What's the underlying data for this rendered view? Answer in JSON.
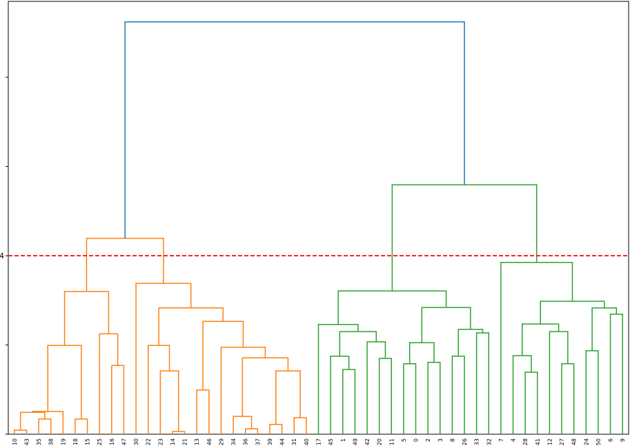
{
  "chart_data": {
    "type": "dendrogram",
    "ylim": [
      0,
      9.7
    ],
    "yticks": [
      {
        "value": 0,
        "label": null
      },
      {
        "value": 2,
        "label": null
      },
      4,
      {
        "value": 6,
        "label": null
      },
      {
        "value": 8,
        "label": null
      }
    ],
    "threshold": 4,
    "threshold_color": "#ff0000",
    "tree": {
      "height": 9.24,
      "color": "#1f77b4",
      "children": [
        {
          "height": 4.39,
          "color": "#ff7f0e",
          "children": [
            {
              "height": 3.2,
              "children": [
                {
                  "height": 1.99,
                  "children": [
                    {
                      "height": 0.51,
                      "children": [
                        {
                          "height": 0.49,
                          "children": [
                            {
                              "height": 0.09,
                              "children": [
                                {
                                  "label": "10"
                                },
                                {
                                  "label": "43"
                                }
                              ]
                            },
                            {
                              "height": 0.34,
                              "children": [
                                {
                                  "label": "35"
                                },
                                {
                                  "label": "38"
                                }
                              ]
                            }
                          ]
                        },
                        {
                          "label": "19"
                        }
                      ]
                    },
                    {
                      "height": 0.34,
                      "children": [
                        {
                          "label": "18"
                        },
                        {
                          "label": "15"
                        }
                      ]
                    }
                  ]
                },
                {
                  "height": 2.25,
                  "children": [
                    {
                      "label": "25"
                    },
                    {
                      "height": 1.54,
                      "children": [
                        {
                          "label": "16"
                        },
                        {
                          "label": "47"
                        }
                      ]
                    }
                  ]
                }
              ]
            },
            {
              "height": 3.38,
              "children": [
                {
                  "label": "30"
                },
                {
                  "height": 2.83,
                  "children": [
                    {
                      "height": 1.99,
                      "children": [
                        {
                          "label": "22"
                        },
                        {
                          "height": 1.42,
                          "children": [
                            {
                              "label": "23"
                            },
                            {
                              "height": 0.06,
                              "children": [
                                {
                                  "label": "14"
                                },
                                {
                                  "label": "21"
                                }
                              ]
                            }
                          ]
                        }
                      ]
                    },
                    {
                      "height": 2.53,
                      "children": [
                        {
                          "height": 0.99,
                          "children": [
                            {
                              "label": "13"
                            },
                            {
                              "label": "46"
                            }
                          ]
                        },
                        {
                          "height": 1.95,
                          "children": [
                            {
                              "label": "29"
                            },
                            {
                              "height": 1.71,
                              "children": [
                                {
                                  "height": 0.4,
                                  "children": [
                                    {
                                      "label": "34"
                                    },
                                    {
                                      "height": 0.12,
                                      "children": [
                                        {
                                          "label": "36"
                                        },
                                        {
                                          "label": "37"
                                        }
                                      ]
                                    }
                                  ]
                                },
                                {
                                  "height": 1.42,
                                  "children": [
                                    {
                                      "height": 0.22,
                                      "children": [
                                        {
                                          "label": "39"
                                        },
                                        {
                                          "label": "44"
                                        }
                                      ]
                                    },
                                    {
                                      "height": 0.37,
                                      "children": [
                                        {
                                          "label": "31"
                                        },
                                        {
                                          "label": "40"
                                        }
                                      ]
                                    }
                                  ]
                                }
                              ]
                            }
                          ]
                        }
                      ]
                    }
                  ]
                }
              ]
            }
          ]
        },
        {
          "height": 5.59,
          "color": "#2ca02c",
          "children": [
            {
              "height": 3.21,
              "children": [
                {
                  "height": 2.46,
                  "children": [
                    {
                      "label": "17"
                    },
                    {
                      "height": 2.3,
                      "children": [
                        {
                          "height": 1.75,
                          "children": [
                            {
                              "label": "45"
                            },
                            {
                              "height": 1.45,
                              "children": [
                                {
                                  "label": "1"
                                },
                                {
                                  "label": "49"
                                }
                              ]
                            }
                          ]
                        },
                        {
                          "height": 2.07,
                          "children": [
                            {
                              "label": "42"
                            },
                            {
                              "height": 1.7,
                              "children": [
                                {
                                  "label": "20"
                                },
                                {
                                  "label": "11"
                                }
                              ]
                            }
                          ]
                        }
                      ]
                    }
                  ]
                },
                {
                  "height": 2.84,
                  "children": [
                    {
                      "height": 2.05,
                      "children": [
                        {
                          "height": 1.58,
                          "children": [
                            {
                              "label": "5"
                            },
                            {
                              "label": "0"
                            }
                          ]
                        },
                        {
                          "height": 1.61,
                          "children": [
                            {
                              "label": "2"
                            },
                            {
                              "label": "3"
                            }
                          ]
                        }
                      ]
                    },
                    {
                      "height": 2.35,
                      "children": [
                        {
                          "height": 1.75,
                          "children": [
                            {
                              "label": "8"
                            },
                            {
                              "label": "26"
                            }
                          ]
                        },
                        {
                          "height": 2.27,
                          "children": [
                            {
                              "label": "33"
                            },
                            {
                              "label": "32"
                            }
                          ]
                        }
                      ]
                    }
                  ]
                }
              ]
            },
            {
              "height": 3.85,
              "children": [
                {
                  "label": "7"
                },
                {
                  "height": 2.98,
                  "children": [
                    {
                      "height": 2.47,
                      "children": [
                        {
                          "height": 1.76,
                          "children": [
                            {
                              "label": "4"
                            },
                            {
                              "height": 1.39,
                              "children": [
                                {
                                  "label": "28"
                                },
                                {
                                  "label": "41"
                                }
                              ]
                            }
                          ]
                        },
                        {
                          "height": 2.3,
                          "children": [
                            {
                              "label": "12"
                            },
                            {
                              "height": 1.58,
                              "children": [
                                {
                                  "label": "27"
                                },
                                {
                                  "label": "48"
                                }
                              ]
                            }
                          ]
                        }
                      ]
                    },
                    {
                      "height": 2.83,
                      "children": [
                        {
                          "height": 1.87,
                          "children": [
                            {
                              "label": "24"
                            },
                            {
                              "label": "50"
                            }
                          ]
                        },
                        {
                          "height": 2.69,
                          "children": [
                            {
                              "label": "6"
                            },
                            {
                              "label": "9"
                            }
                          ]
                        }
                      ]
                    }
                  ]
                }
              ]
            }
          ]
        }
      ]
    }
  }
}
